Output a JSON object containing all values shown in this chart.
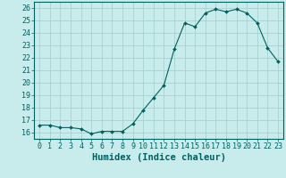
{
  "x": [
    0,
    1,
    2,
    3,
    4,
    5,
    6,
    7,
    8,
    9,
    10,
    11,
    12,
    13,
    14,
    15,
    16,
    17,
    18,
    19,
    20,
    21,
    22,
    23
  ],
  "y": [
    16.6,
    16.6,
    16.4,
    16.4,
    16.3,
    15.9,
    16.1,
    16.1,
    16.1,
    16.7,
    17.8,
    18.8,
    19.8,
    22.7,
    24.8,
    24.5,
    25.6,
    25.9,
    25.7,
    25.9,
    25.6,
    24.8,
    22.8,
    21.7
  ],
  "line_color": "#006060",
  "marker": "D",
  "marker_size": 2.0,
  "bg_color": "#c8ecec",
  "grid_color": "#a0cccc",
  "xlabel": "Humidex (Indice chaleur)",
  "ylim": [
    15.5,
    26.5
  ],
  "xlim": [
    -0.5,
    23.5
  ],
  "yticks": [
    16,
    17,
    18,
    19,
    20,
    21,
    22,
    23,
    24,
    25,
    26
  ],
  "xticks": [
    0,
    1,
    2,
    3,
    4,
    5,
    6,
    7,
    8,
    9,
    10,
    11,
    12,
    13,
    14,
    15,
    16,
    17,
    18,
    19,
    20,
    21,
    22,
    23
  ],
  "xtick_labels": [
    "0",
    "1",
    "2",
    "3",
    "4",
    "5",
    "6",
    "7",
    "8",
    "9",
    "10",
    "11",
    "12",
    "13",
    "14",
    "15",
    "16",
    "17",
    "18",
    "19",
    "20",
    "21",
    "22",
    "23"
  ],
  "tick_color": "#006060",
  "label_fontsize": 7.5,
  "tick_fontsize": 6.0
}
